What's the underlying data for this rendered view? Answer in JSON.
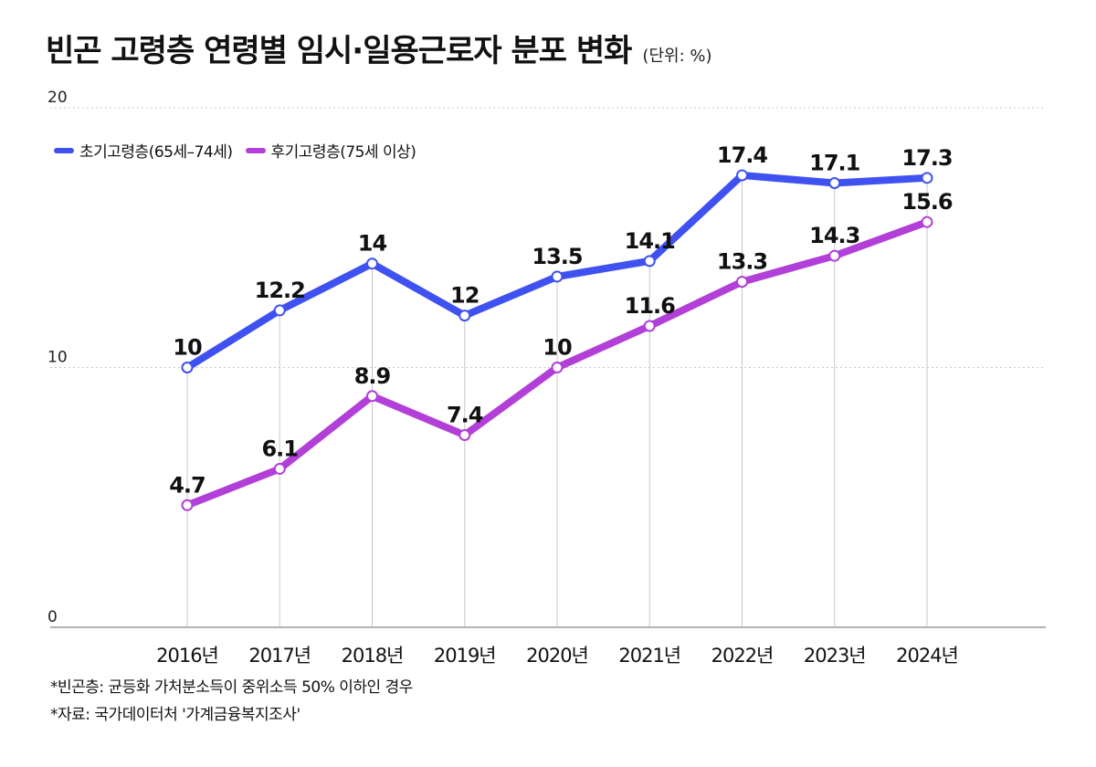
{
  "header": {
    "title": "빈곤 고령층 연령별 임시·일용근로자 분포 변화",
    "unit": "(단위: %)"
  },
  "chart_data": {
    "type": "line",
    "title": "빈곤 고령층 연령별 임시·일용근로자 분포 변화",
    "unit": "(단위: %)",
    "categories": [
      "2016년",
      "2017년",
      "2018년",
      "2019년",
      "2020년",
      "2021년",
      "2022년",
      "2023년",
      "2024년"
    ],
    "series": [
      {
        "name": "초기고령층(65세–74세)",
        "color": "#3F51F0",
        "values": [
          10,
          12.2,
          14,
          12,
          13.5,
          14.1,
          17.4,
          17.1,
          17.3
        ],
        "labels": [
          "10",
          "12.2",
          "14",
          "12",
          "13.5",
          "14.1",
          "17.4",
          "17.1",
          "17.3"
        ]
      },
      {
        "name": "후기고령층(75세 이상)",
        "color": "#B13FD8",
        "values": [
          4.7,
          6.1,
          8.9,
          7.4,
          10,
          11.6,
          13.3,
          14.3,
          15.6
        ],
        "labels": [
          "4.7",
          "6.1",
          "8.9",
          "7.4",
          "10",
          "11.6",
          "13.3",
          "14.3",
          "15.6"
        ]
      }
    ],
    "ylim": [
      0,
      20
    ],
    "yticks": [
      0,
      10,
      20
    ],
    "ytick_labels": [
      "0",
      "10",
      "20"
    ],
    "grid": true,
    "legend_position": "top-left"
  },
  "footnotes": [
    "*빈곤층: 균등화 가처분소득이 중위소득 50% 이하인 경우",
    "*자료: 국가데이터처 '가계금융복지조사'"
  ]
}
